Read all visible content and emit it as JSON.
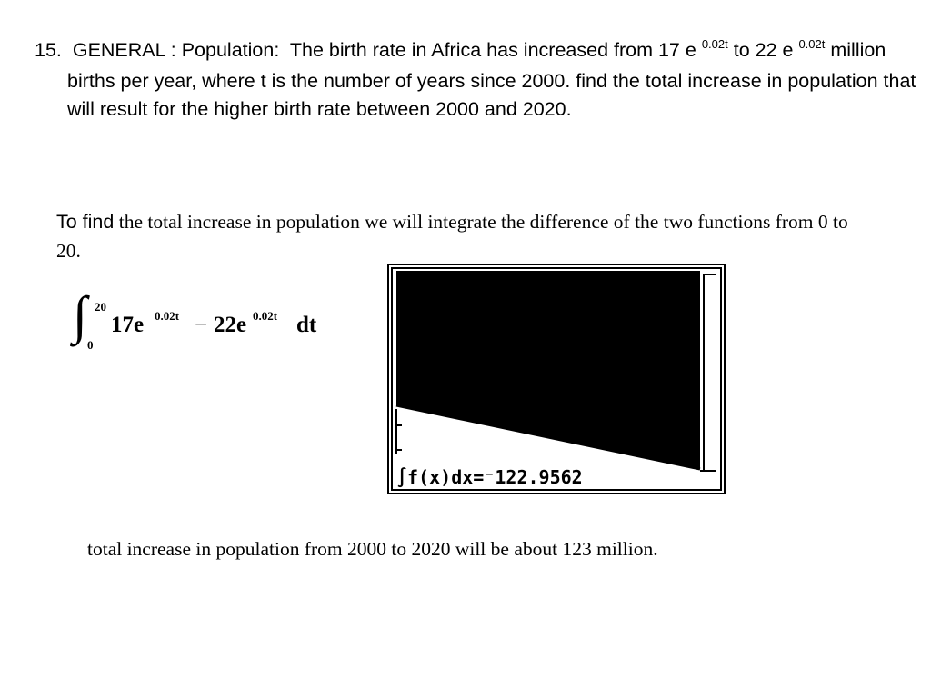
{
  "problem": {
    "number": "15.",
    "label": "GENERAL : Population:",
    "text1": "The birth rate in Africa has increased from 17 e",
    "exp1": "0.02t",
    "text2": "to 22 e",
    "exp2": "0.02t",
    "text3": "million births per year, where t is the number of years since 2000. find the total increase in population that will result for the higher birth rate between 2000 and 2020."
  },
  "explanation": {
    "lead": "To find",
    "rest": "the total increase in population we will integrate the difference of the two functions from 0 to 20."
  },
  "integral": {
    "upper": "20",
    "lower": "0",
    "term1": "17e",
    "exp1": "0.02t",
    "minus": "−",
    "term2": "22e",
    "exp2": "0.02t",
    "differential": "dt"
  },
  "calculator": {
    "readout": "∫f(x)dx=⁻122.9562"
  },
  "conclusion": "total increase in population from 2000 to 2020 will be about 123 million."
}
